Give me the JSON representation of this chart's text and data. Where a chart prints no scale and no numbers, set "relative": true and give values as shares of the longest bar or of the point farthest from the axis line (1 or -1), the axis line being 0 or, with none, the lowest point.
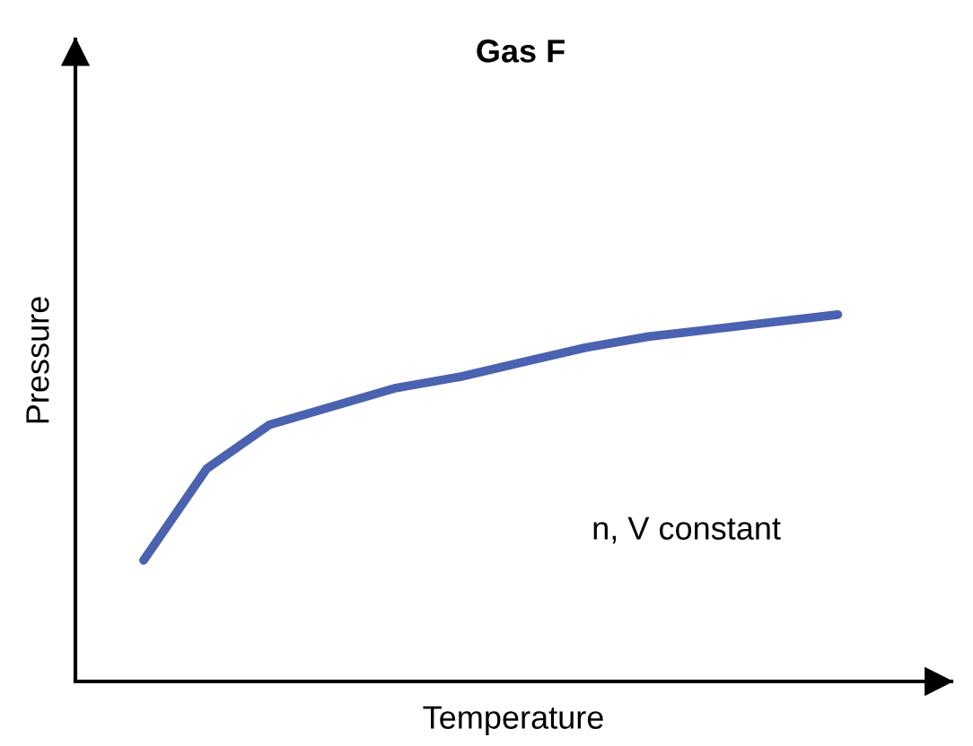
{
  "chart_data": {
    "type": "line",
    "title": "Gas F",
    "xlabel": "Temperature",
    "ylabel": "Pressure",
    "relative": true,
    "categories": [
      null,
      null,
      null,
      null,
      null,
      null,
      null,
      null,
      null,
      null,
      null,
      null
    ],
    "series": [
      {
        "color": "#4a62b0",
        "values": [
          0.33,
          0.58,
          0.7,
          0.75,
          0.8,
          0.83,
          0.87,
          0.91,
          0.94,
          0.96,
          0.98,
          1.0
        ]
      }
    ],
    "annotations": [
      "n, V constant"
    ],
    "grid": false,
    "legend": false,
    "marker": "none",
    "line_style": "solid"
  }
}
